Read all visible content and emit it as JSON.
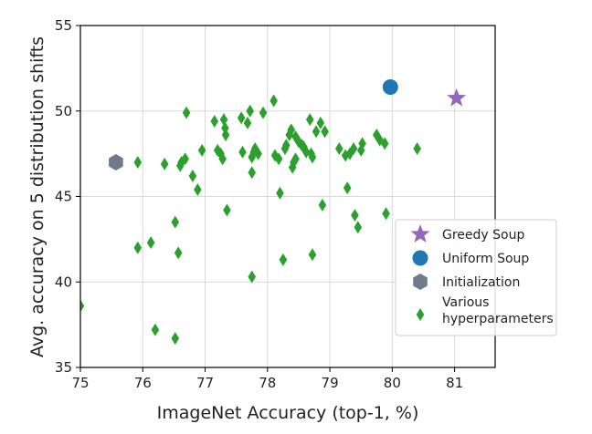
{
  "chart_data": {
    "type": "scatter",
    "xlabel": "ImageNet Accuracy (top-1, %)",
    "ylabel": "Avg. accuracy on 5 distribution shifts",
    "xlim": [
      75,
      81.65
    ],
    "ylim": [
      35,
      55
    ],
    "xticks": [
      75,
      76,
      77,
      78,
      79,
      80,
      81
    ],
    "yticks": [
      35,
      40,
      45,
      50,
      55
    ],
    "grid": true,
    "legend_position": "lower-right",
    "colors": {
      "greedy": "#9467bd",
      "uniform": "#1f77b4",
      "init": "#6e7b8b",
      "various": "#2ca02c"
    },
    "series": [
      {
        "name": "Greedy Soup",
        "marker": "star",
        "points": [
          [
            81.03,
            50.75
          ]
        ]
      },
      {
        "name": "Uniform Soup",
        "marker": "circle",
        "points": [
          [
            79.97,
            51.4
          ]
        ]
      },
      {
        "name": "Initialization",
        "marker": "hexagon",
        "points": [
          [
            75.57,
            47.0
          ]
        ]
      },
      {
        "name": "Various hyperparameters",
        "legend_lines": [
          "Various",
          "hyperparameters"
        ],
        "marker": "diamond",
        "points": [
          [
            75.0,
            38.6
          ],
          [
            75.92,
            47.0
          ],
          [
            75.92,
            42.0
          ],
          [
            76.13,
            42.3
          ],
          [
            76.2,
            37.2
          ],
          [
            76.35,
            46.9
          ],
          [
            76.52,
            43.5
          ],
          [
            76.52,
            36.7
          ],
          [
            76.57,
            41.7
          ],
          [
            76.6,
            46.8
          ],
          [
            76.62,
            47.0
          ],
          [
            76.68,
            47.2
          ],
          [
            76.7,
            49.9
          ],
          [
            76.8,
            46.2
          ],
          [
            76.88,
            45.4
          ],
          [
            76.95,
            47.7
          ],
          [
            77.15,
            49.4
          ],
          [
            77.2,
            47.7
          ],
          [
            77.25,
            47.5
          ],
          [
            77.28,
            47.2
          ],
          [
            77.3,
            49.5
          ],
          [
            77.32,
            49.0
          ],
          [
            77.33,
            48.6
          ],
          [
            77.35,
            44.2
          ],
          [
            77.58,
            49.6
          ],
          [
            77.6,
            47.6
          ],
          [
            77.68,
            49.3
          ],
          [
            77.72,
            50.0
          ],
          [
            77.75,
            46.4
          ],
          [
            77.75,
            47.3
          ],
          [
            77.78,
            47.6
          ],
          [
            77.75,
            40.3
          ],
          [
            77.8,
            47.8
          ],
          [
            77.85,
            47.5
          ],
          [
            77.93,
            49.9
          ],
          [
            78.1,
            50.6
          ],
          [
            78.12,
            47.4
          ],
          [
            78.18,
            47.2
          ],
          [
            78.2,
            45.2
          ],
          [
            78.25,
            41.3
          ],
          [
            78.28,
            47.8
          ],
          [
            78.3,
            48.0
          ],
          [
            78.35,
            48.6
          ],
          [
            78.38,
            48.9
          ],
          [
            78.4,
            46.7
          ],
          [
            78.42,
            47.0
          ],
          [
            78.45,
            47.2
          ],
          [
            78.45,
            48.5
          ],
          [
            78.5,
            48.2
          ],
          [
            78.55,
            48.0
          ],
          [
            78.58,
            47.9
          ],
          [
            78.62,
            47.6
          ],
          [
            78.68,
            49.5
          ],
          [
            78.7,
            47.5
          ],
          [
            78.72,
            47.3
          ],
          [
            78.72,
            41.6
          ],
          [
            78.78,
            48.8
          ],
          [
            78.85,
            49.3
          ],
          [
            78.88,
            44.5
          ],
          [
            78.92,
            48.8
          ],
          [
            79.15,
            47.8
          ],
          [
            79.25,
            47.4
          ],
          [
            79.28,
            45.5
          ],
          [
            79.32,
            47.5
          ],
          [
            79.38,
            47.8
          ],
          [
            79.4,
            43.9
          ],
          [
            79.45,
            43.2
          ],
          [
            79.5,
            47.7
          ],
          [
            79.52,
            48.1
          ],
          [
            79.75,
            48.6
          ],
          [
            79.8,
            48.3
          ],
          [
            79.88,
            48.1
          ],
          [
            79.9,
            44.0
          ],
          [
            80.4,
            47.8
          ]
        ]
      }
    ]
  }
}
